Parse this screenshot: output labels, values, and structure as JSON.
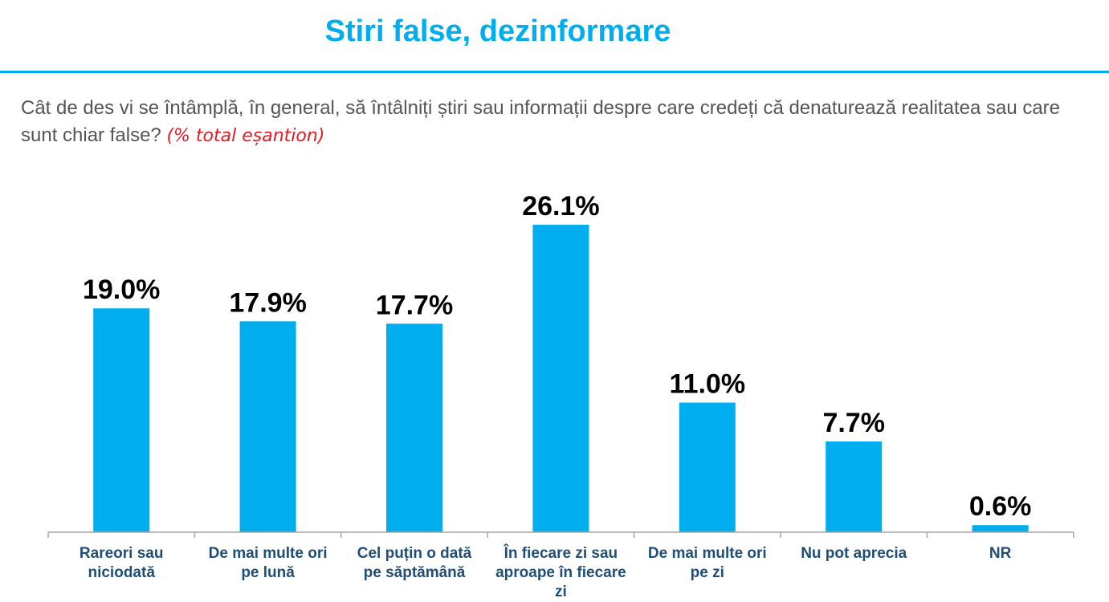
{
  "page": {
    "title": "Stiri false, dezinformare",
    "question": "Cât de des vi se întâmplă, în general, să întâlniți știri sau informații despre care credeți că denaturează realitatea sau care sunt chiar false?",
    "note": "(% total eșantion)"
  },
  "colors": {
    "accent": "#00AEEF",
    "category_text": "#1F4E79",
    "note": "#E31B23"
  },
  "chart_data": {
    "type": "bar",
    "categories": [
      [
        "Rareori sau",
        "niciodată"
      ],
      [
        "De mai multe ori",
        "pe lună"
      ],
      [
        "Cel puțin o dată",
        "pe săptămână"
      ],
      [
        "În fiecare zi sau",
        "aproape în fiecare",
        "zi"
      ],
      [
        "De mai multe ori",
        "pe zi"
      ],
      [
        "Nu pot aprecia"
      ],
      [
        "NR"
      ]
    ],
    "values": [
      19.0,
      17.9,
      17.7,
      26.1,
      11.0,
      7.7,
      0.6
    ],
    "value_labels": [
      "19.0%",
      "17.9%",
      "17.7%",
      "26.1%",
      "11.0%",
      "7.7%",
      "0.6%"
    ],
    "ylim": [
      0,
      26.1
    ],
    "grid": false,
    "legend": "none"
  }
}
